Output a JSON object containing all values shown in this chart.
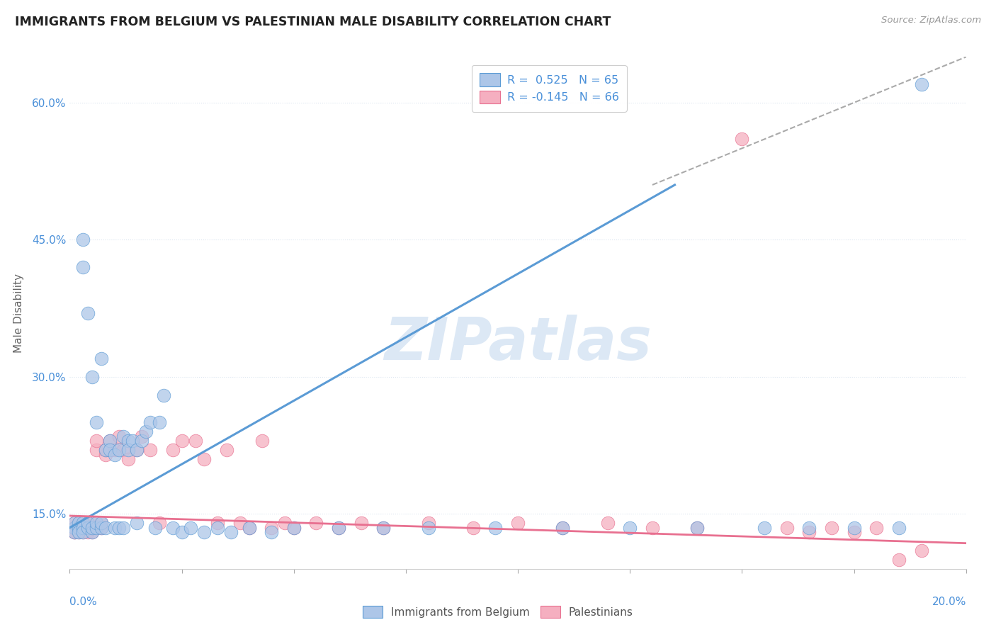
{
  "title": "IMMIGRANTS FROM BELGIUM VS PALESTINIAN MALE DISABILITY CORRELATION CHART",
  "source": "Source: ZipAtlas.com",
  "legend_label1": "Immigrants from Belgium",
  "legend_label2": "Palestinians",
  "R1": 0.525,
  "N1": 65,
  "R2": -0.145,
  "N2": 66,
  "color1": "#adc6e8",
  "color2": "#f5afc0",
  "line_color1": "#5b9bd5",
  "line_color2": "#e87090",
  "bg_color": "#ffffff",
  "grid_color": "#dce6f0",
  "watermark_color": "#dce8f5",
  "title_color": "#222222",
  "axis_color": "#4a90d9",
  "xmin": 0.0,
  "xmax": 0.2,
  "ymin": 0.09,
  "ymax": 0.65,
  "yticks": [
    0.15,
    0.3,
    0.45,
    0.6
  ],
  "ytick_labels": [
    "15.0%",
    "30.0%",
    "45.0%",
    "60.0%"
  ],
  "blue_scatter_x": [
    0.001,
    0.001,
    0.001,
    0.002,
    0.002,
    0.002,
    0.003,
    0.003,
    0.003,
    0.003,
    0.003,
    0.004,
    0.004,
    0.004,
    0.005,
    0.005,
    0.005,
    0.006,
    0.006,
    0.006,
    0.007,
    0.007,
    0.007,
    0.008,
    0.008,
    0.009,
    0.009,
    0.01,
    0.01,
    0.011,
    0.011,
    0.012,
    0.012,
    0.013,
    0.013,
    0.014,
    0.015,
    0.015,
    0.016,
    0.017,
    0.018,
    0.019,
    0.02,
    0.021,
    0.023,
    0.025,
    0.027,
    0.03,
    0.033,
    0.036,
    0.04,
    0.045,
    0.05,
    0.06,
    0.07,
    0.08,
    0.095,
    0.11,
    0.125,
    0.14,
    0.155,
    0.165,
    0.175,
    0.185,
    0.19
  ],
  "blue_scatter_y": [
    0.135,
    0.14,
    0.13,
    0.135,
    0.14,
    0.13,
    0.45,
    0.42,
    0.14,
    0.135,
    0.13,
    0.135,
    0.37,
    0.14,
    0.13,
    0.135,
    0.3,
    0.25,
    0.135,
    0.14,
    0.32,
    0.135,
    0.14,
    0.135,
    0.22,
    0.23,
    0.22,
    0.215,
    0.135,
    0.135,
    0.22,
    0.235,
    0.135,
    0.23,
    0.22,
    0.23,
    0.22,
    0.14,
    0.23,
    0.24,
    0.25,
    0.135,
    0.25,
    0.28,
    0.135,
    0.13,
    0.135,
    0.13,
    0.135,
    0.13,
    0.135,
    0.13,
    0.135,
    0.135,
    0.135,
    0.135,
    0.135,
    0.135,
    0.135,
    0.135,
    0.135,
    0.135,
    0.135,
    0.135,
    0.62
  ],
  "pink_scatter_x": [
    0.001,
    0.001,
    0.001,
    0.001,
    0.001,
    0.002,
    0.002,
    0.002,
    0.002,
    0.003,
    0.003,
    0.003,
    0.003,
    0.004,
    0.004,
    0.004,
    0.004,
    0.005,
    0.005,
    0.005,
    0.006,
    0.006,
    0.007,
    0.007,
    0.008,
    0.008,
    0.009,
    0.01,
    0.011,
    0.012,
    0.013,
    0.015,
    0.016,
    0.018,
    0.02,
    0.023,
    0.025,
    0.028,
    0.03,
    0.033,
    0.035,
    0.038,
    0.04,
    0.043,
    0.045,
    0.048,
    0.05,
    0.055,
    0.06,
    0.065,
    0.07,
    0.08,
    0.09,
    0.1,
    0.11,
    0.12,
    0.13,
    0.14,
    0.15,
    0.16,
    0.165,
    0.17,
    0.175,
    0.18,
    0.185,
    0.19
  ],
  "pink_scatter_y": [
    0.135,
    0.13,
    0.14,
    0.135,
    0.13,
    0.135,
    0.14,
    0.135,
    0.13,
    0.135,
    0.14,
    0.135,
    0.13,
    0.135,
    0.14,
    0.135,
    0.13,
    0.135,
    0.14,
    0.13,
    0.22,
    0.23,
    0.135,
    0.14,
    0.215,
    0.22,
    0.23,
    0.22,
    0.235,
    0.22,
    0.21,
    0.22,
    0.235,
    0.22,
    0.14,
    0.22,
    0.23,
    0.23,
    0.21,
    0.14,
    0.22,
    0.14,
    0.135,
    0.23,
    0.135,
    0.14,
    0.135,
    0.14,
    0.135,
    0.14,
    0.135,
    0.14,
    0.135,
    0.14,
    0.135,
    0.14,
    0.135,
    0.135,
    0.56,
    0.135,
    0.13,
    0.135,
    0.13,
    0.135,
    0.1,
    0.11
  ],
  "dash_line_x": [
    0.13,
    0.2
  ],
  "dash_line_y": [
    0.51,
    0.65
  ],
  "blue_line_x": [
    0.0,
    0.135
  ],
  "blue_line_y": [
    0.135,
    0.51
  ],
  "pink_line_x": [
    0.0,
    0.2
  ],
  "pink_line_y": [
    0.148,
    0.118
  ]
}
